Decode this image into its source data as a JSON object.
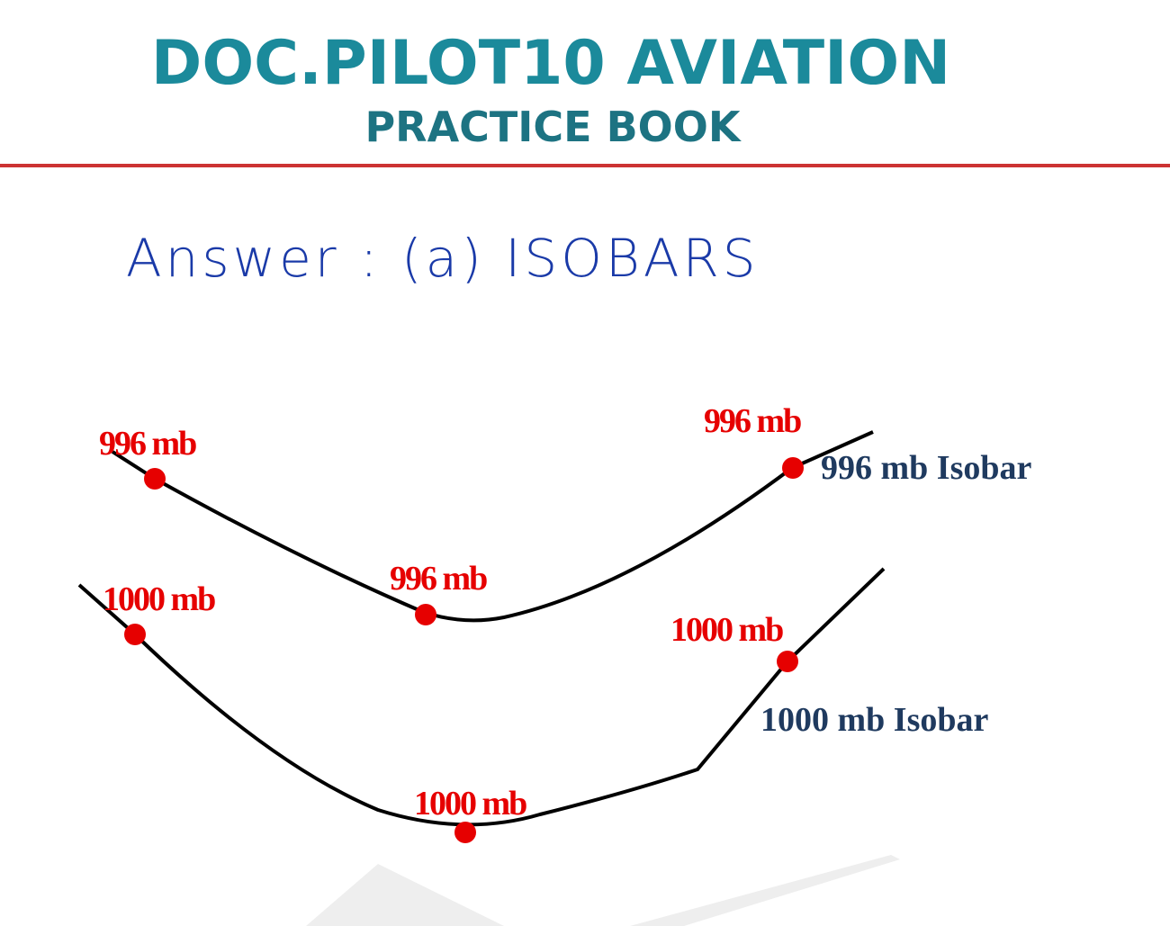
{
  "header": {
    "title": "DOC.PILOT10 AVIATION",
    "subtitle": "PRACTICE BOOK"
  },
  "answer": "Answer : (a) ISOBARS",
  "diagram": {
    "isobars": [
      {
        "label": "996 mb Isobar",
        "points": [
          "996 mb",
          "996 mb",
          "996 mb"
        ]
      },
      {
        "label": "1000 mb Isobar",
        "points": [
          "1000 mb",
          "1000 mb",
          "1000 mb"
        ]
      }
    ]
  }
}
